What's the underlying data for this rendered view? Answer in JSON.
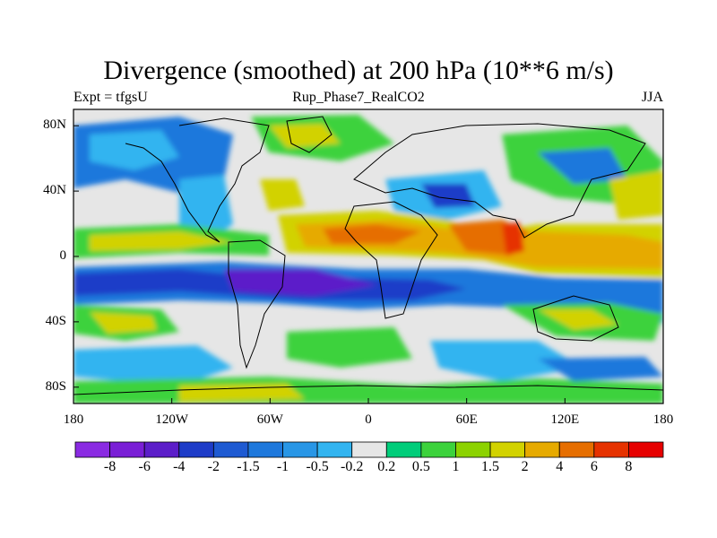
{
  "title": "Divergence (smoothed) at 200 hPa (10**6 m/s)",
  "subtitle_left": "Expt = tfgsU",
  "subtitle_center": "Rup_Phase7_RealCO2",
  "subtitle_right": "JJA",
  "y_ticks": [
    "80N",
    "40N",
    "0",
    "40S",
    "80S"
  ],
  "y_tick_values": [
    80,
    40,
    0,
    -40,
    -80
  ],
  "x_ticks": [
    "180",
    "120W",
    "60W",
    "0",
    "60E",
    "120E",
    "180"
  ],
  "x_tick_values": [
    -180,
    -120,
    -60,
    0,
    60,
    120,
    180
  ],
  "colorbar": {
    "labels": [
      "-8",
      "-6",
      "-4",
      "-2",
      "-1.5",
      "-1",
      "-0.5",
      "-0.2",
      "0.2",
      "0.5",
      "1",
      "1.5",
      "2",
      "4",
      "6",
      "8"
    ],
    "colors": [
      "#8a2be2",
      "#7a1fd6",
      "#5c1ec9",
      "#1e3cc8",
      "#1e5ad2",
      "#1e78dc",
      "#2896e6",
      "#32b4f0",
      "#e6e6e6",
      "#00cd7a",
      "#3cd23c",
      "#8cd200",
      "#d2d200",
      "#e6aa00",
      "#e66e00",
      "#e63200",
      "#e60000"
    ]
  },
  "map_legend_colors": {
    "neg_strong": "#2a2ad2",
    "neg_mid": "#1e78dc",
    "neg_weak": "#32b4f0",
    "neutral": "#e6e6e6",
    "pos_weak": "#3cd23c",
    "pos_mid": "#d2d200",
    "pos_strong": "#e67800",
    "pos_max": "#e63200"
  }
}
